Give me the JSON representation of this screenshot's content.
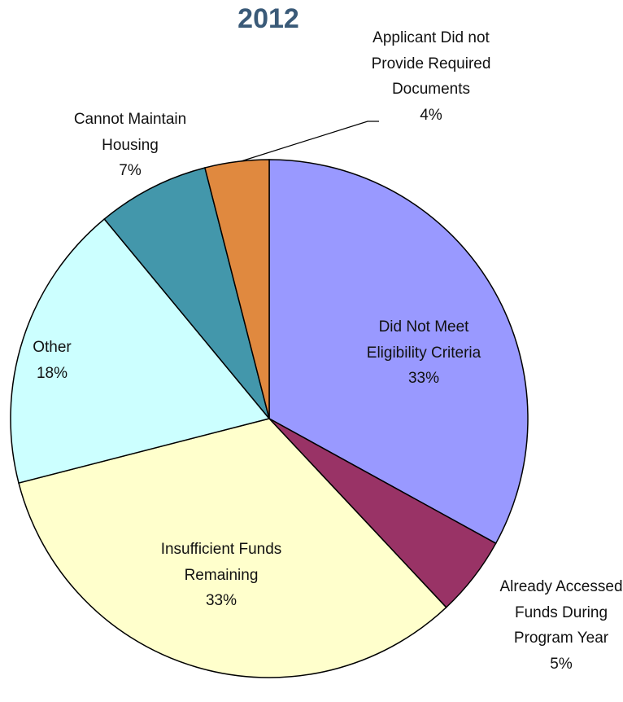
{
  "chart_data": {
    "type": "pie",
    "title": "2012",
    "categories": [
      "Did Not Meet Eligibility Criteria",
      "Already Accessed Funds During Program Year",
      "Insufficient Funds Remaining",
      "Other",
      "Cannot Maintain Housing",
      "Applicant Did not Provide Required Documents"
    ],
    "values": [
      33,
      5,
      33,
      18,
      7,
      4
    ],
    "value_labels": [
      "33%",
      "5%",
      "33%",
      "18%",
      "7%",
      "4%"
    ],
    "colors": [
      "#9999ff",
      "#993366",
      "#ffffcc",
      "#ccffff",
      "#4397ab",
      "#e0893f"
    ]
  }
}
